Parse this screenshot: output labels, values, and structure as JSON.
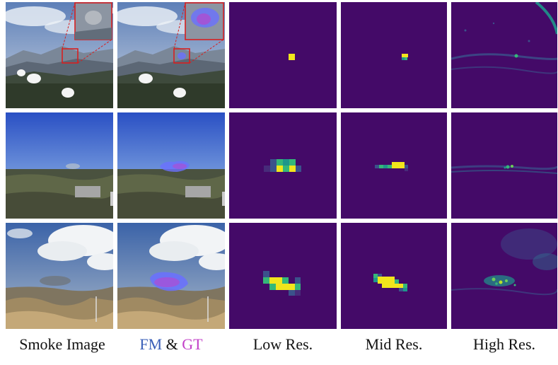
{
  "figure": {
    "rows": [
      {
        "id": "row-1",
        "scene": "mountain-with-small-smoke",
        "has_inset_zoom": true
      },
      {
        "id": "row-2",
        "scene": "blue-sky-with-distant-smoke",
        "has_inset_zoom": false
      },
      {
        "id": "row-3",
        "scene": "cloudy-sky-with-smoke-plume",
        "has_inset_zoom": false
      }
    ],
    "columns": [
      "smoke-image",
      "fm-gt-overlay",
      "low-res-map",
      "mid-res-map",
      "high-res-map"
    ],
    "colors": {
      "heatmap_bg": "#440a68",
      "heatmap_yellow": "#f2e51c",
      "heatmap_green": "#35b779",
      "heatmap_teal": "#1f968b",
      "heatmap_blue": "#3b528b",
      "fm_mask": "#6a70ff",
      "gt_mask": "#c23fc8",
      "inset_box": "#d62020"
    }
  },
  "captions": {
    "smoke_image": "Smoke Image",
    "fm": "FM",
    "amp": "&",
    "gt": "GT",
    "low_res": "Low Res.",
    "mid_res": "Mid Res.",
    "high_res": "High Res."
  }
}
